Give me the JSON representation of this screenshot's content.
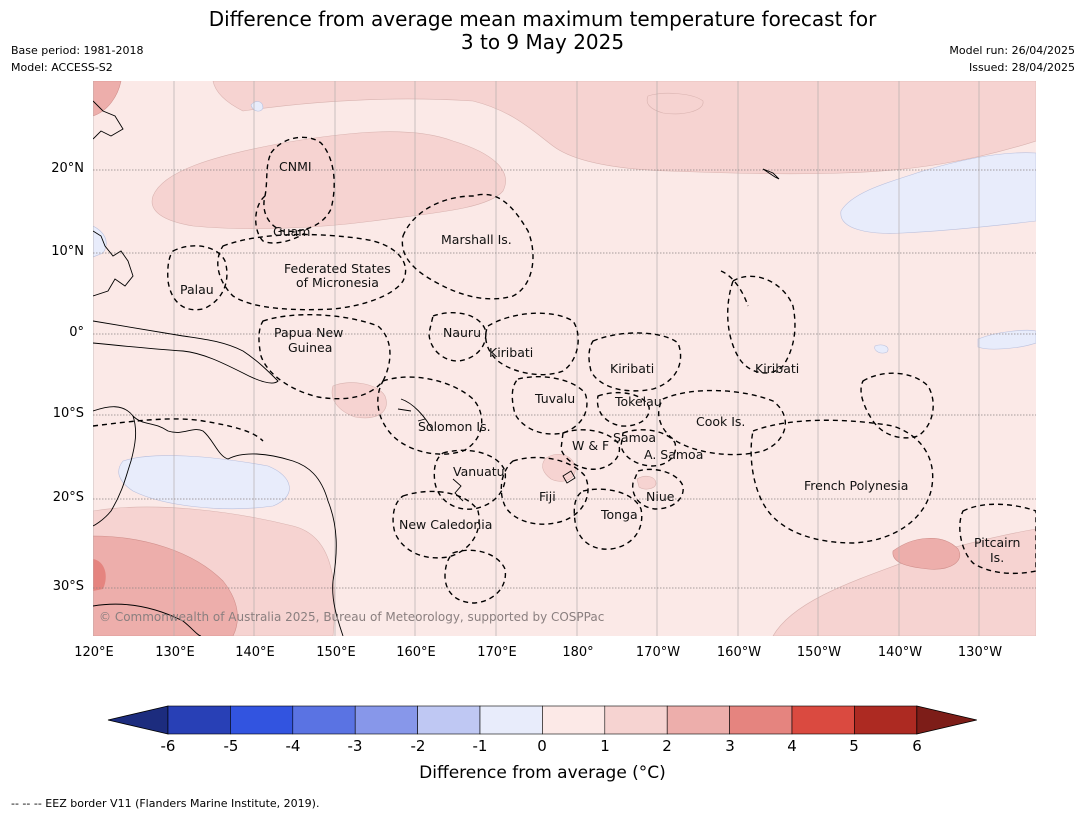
{
  "header": {
    "title_line1": "Difference from average mean maximum temperature forecast for",
    "title_line2": "3 to 9 May 2025",
    "base_period": "Base period: 1981-2018",
    "model": "Model: ACCESS-S2",
    "model_run": "Model run: 26/04/2025",
    "issued": "Issued: 28/04/2025"
  },
  "map": {
    "lat_labels": [
      "20°N",
      "10°N",
      "0°",
      "10°S",
      "20°S",
      "30°S"
    ],
    "lon_labels": [
      "120°E",
      "130°E",
      "140°E",
      "150°E",
      "160°E",
      "170°E",
      "180°",
      "170°W",
      "160°W",
      "150°W",
      "140°W",
      "130°W"
    ],
    "regions": [
      "CNMI",
      "Guam",
      "Marshall Is.",
      "Federated States",
      "of Micronesia",
      "Palau",
      "Papua New",
      "Guinea",
      "Nauru",
      "Kiribati",
      "Kiribati",
      "Kiribati",
      "Tuvalu",
      "Tokelau",
      "Cook Is.",
      "Solomon Is.",
      "Samoa",
      "W & F",
      "A. Samoa",
      "Vanuatu",
      "Fiji",
      "Niue",
      "Tonga",
      "French Polynesia",
      "New Caledonia",
      "Pitcairn",
      "Is."
    ],
    "copyright": "© Commonwealth of Australia 2025, Bureau of Meteorology, supported by COSPPac",
    "colors": {
      "ocean_base": "#fbe9e7",
      "warm_1_2": "#f6d3d1",
      "warm_2_3": "#edaeab",
      "warm_3_4": "#e5847f",
      "cool_0_-1": "#e8ecfb"
    }
  },
  "colorbar": {
    "ticks": [
      "-6",
      "-5",
      "-4",
      "-3",
      "-2",
      "-1",
      "0",
      "1",
      "2",
      "3",
      "4",
      "5",
      "6"
    ],
    "colors": [
      "#1c2c7e",
      "#2840b6",
      "#3254e0",
      "#5a73e3",
      "#8797ea",
      "#bfc8f3",
      "#e8ecfb",
      "#fce9e7",
      "#f6d3d1",
      "#edaeab",
      "#e5847f",
      "#da4a40",
      "#ad2a22",
      "#7d1d18"
    ],
    "label": "Difference from average (°C)"
  },
  "footnote": "--  --  -- EEZ border V11 (Flanders Marine Institute, 2019)."
}
